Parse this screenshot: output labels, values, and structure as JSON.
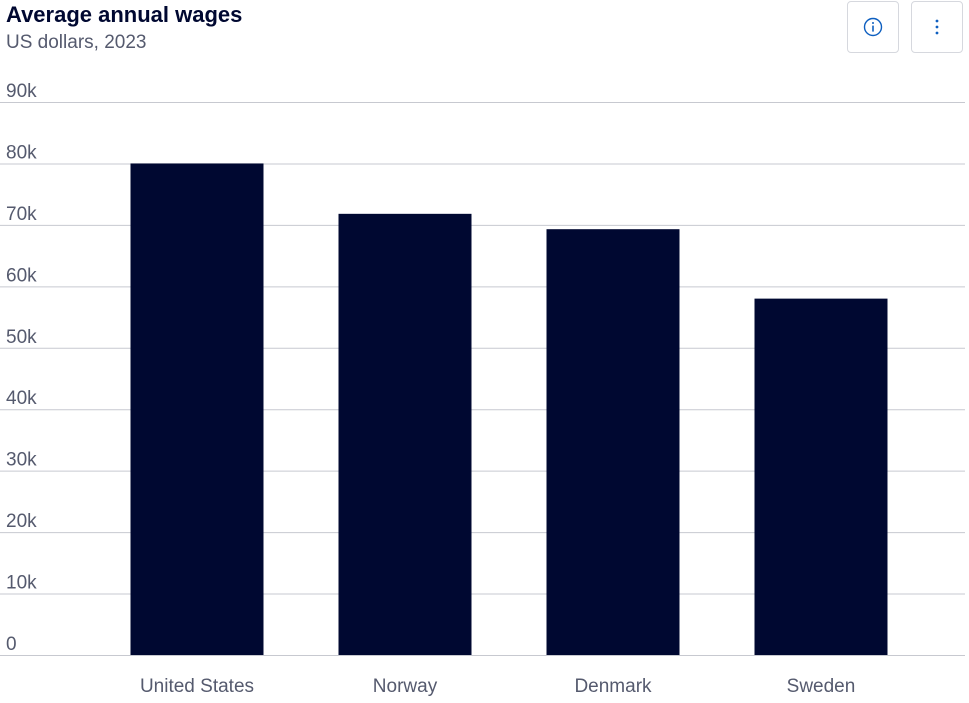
{
  "header": {
    "title": "Average annual wages",
    "subtitle": "US dollars, 2023"
  },
  "toolbar": {
    "info_icon": "info-icon",
    "more_icon": "more-vertical-icon"
  },
  "colors": {
    "bar": "#000831",
    "accent": "#0e5fc0",
    "grid": "#c7c9d0",
    "axis_text": "#555a6e"
  },
  "chart_data": {
    "type": "bar",
    "title": "Average annual wages",
    "subtitle": "US dollars, 2023",
    "categories": [
      "United States",
      "Norway",
      "Denmark",
      "Sweden"
    ],
    "values": [
      80000,
      71800,
      69300,
      58000
    ],
    "ylim": [
      0,
      90000
    ],
    "yticks": [
      0,
      10000,
      20000,
      30000,
      40000,
      50000,
      60000,
      70000,
      80000,
      90000
    ],
    "ytick_labels": [
      "0",
      "10k",
      "20k",
      "30k",
      "40k",
      "50k",
      "60k",
      "70k",
      "80k",
      "90k"
    ],
    "grid": true,
    "legend": "none"
  }
}
